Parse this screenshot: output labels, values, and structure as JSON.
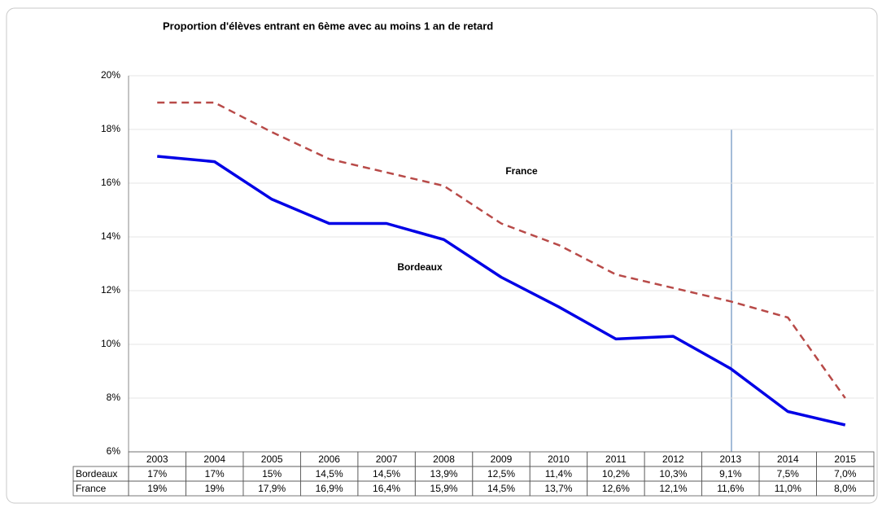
{
  "chart_data": {
    "type": "line",
    "title": "Proportion d'élèves entrant en 6ème avec au moins 1 an de retard",
    "categories": [
      "2003",
      "2004",
      "2005",
      "2006",
      "2007",
      "2008",
      "2009",
      "2010",
      "2011",
      "2012",
      "2013",
      "2014",
      "2015"
    ],
    "series": [
      {
        "name": "Bordeaux",
        "color": "#0000e6",
        "dashed": false,
        "values": [
          17,
          16.8,
          15.4,
          14.5,
          14.5,
          13.9,
          12.5,
          11.4,
          10.2,
          10.3,
          9.1,
          7.5,
          7.0
        ],
        "value_labels": [
          "17%",
          "17%",
          "15%",
          "14,5%",
          "14,5%",
          "13,9%",
          "12,5%",
          "11,4%",
          "10,2%",
          "10,3%",
          "9,1%",
          "7,5%",
          "7,0%"
        ]
      },
      {
        "name": "France",
        "color": "#b84a48",
        "dashed": true,
        "values": [
          19,
          19,
          17.9,
          16.9,
          16.4,
          15.9,
          14.5,
          13.7,
          12.6,
          12.1,
          11.6,
          11.0,
          8.0
        ],
        "value_labels": [
          "19%",
          "19%",
          "17,9%",
          "16,9%",
          "16,4%",
          "15,9%",
          "14,5%",
          "13,7%",
          "12,6%",
          "12,1%",
          "11,6%",
          "11,0%",
          "8,0%"
        ]
      }
    ],
    "annotations": [
      "France",
      "Bordeaux"
    ],
    "ylim": [
      6,
      20
    ],
    "yticks": [
      {
        "value": 6,
        "label": "6%"
      },
      {
        "value": 8,
        "label": "8%"
      },
      {
        "value": 10,
        "label": "10%"
      },
      {
        "value": 12,
        "label": "12%"
      },
      {
        "value": 14,
        "label": "14%"
      },
      {
        "value": 16,
        "label": "16%"
      },
      {
        "value": 18,
        "label": "18%"
      },
      {
        "value": 20,
        "label": "20%"
      }
    ],
    "grid": true
  }
}
